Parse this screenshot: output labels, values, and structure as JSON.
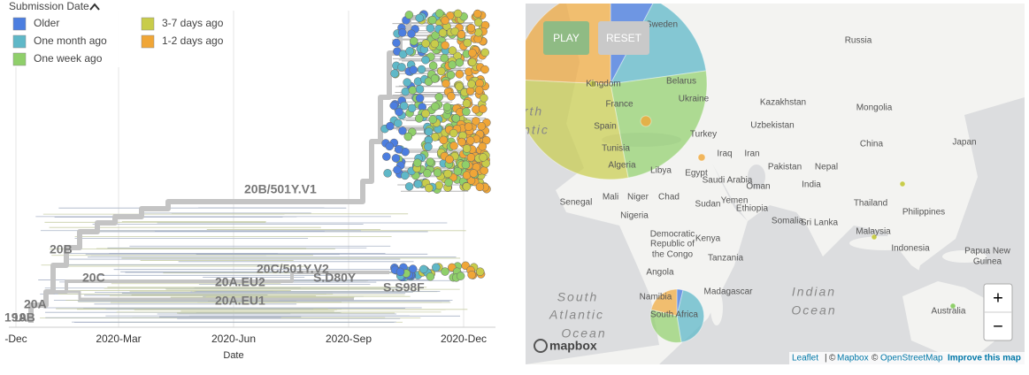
{
  "legend": {
    "title": "Submission Date",
    "items": [
      {
        "label": "Older",
        "color": "#4c7ee0"
      },
      {
        "label": "One month ago",
        "color": "#5fb8c8"
      },
      {
        "label": "One week ago",
        "color": "#8fcf6a"
      },
      {
        "label": "3-7 days ago",
        "color": "#c8cc4a"
      },
      {
        "label": "1-2 days ago",
        "color": "#f0a637"
      }
    ]
  },
  "tree": {
    "clades": [
      "20B/501Y.V1",
      "20B",
      "20C",
      "20A",
      "19A",
      "19B",
      "20C/501Y.V2",
      "20A.EU2",
      "S.D80Y",
      "20A.EU1",
      "S.S98F"
    ],
    "x_axis": {
      "label": "Date",
      "ticks": [
        "-Dec",
        "2020-Mar",
        "2020-Jun",
        "2020-Sep",
        "2020-Dec"
      ]
    }
  },
  "map": {
    "buttons": [
      "PLAY",
      "RESET"
    ],
    "labels": [
      "Russia",
      "Sweden",
      "Kingdom",
      "France",
      "Spain",
      "Belarus",
      "Ukraine",
      "Kazakhstan",
      "Mongolia",
      "Uzbekistan",
      "Turkey",
      "Iraq",
      "Iran",
      "Pakistan",
      "Nepal",
      "China",
      "Japan",
      "India",
      "Saudi Arabia",
      "Oman",
      "Egypt",
      "Libya",
      "Algeria",
      "Tunisia",
      "Mali",
      "Niger",
      "Chad",
      "Sudan",
      "Senegal",
      "Nigeria",
      "Ethiopia",
      "Yemen",
      "Somalia",
      "Kenya",
      "Democratic",
      "Republic of",
      "the Congo",
      "Angola",
      "Namibia",
      "South Africa",
      "Madagascar",
      "Sri Lanka",
      "Thailand",
      "Philippines",
      "Malaysia",
      "Indonesia",
      "Papua New",
      "Guinea",
      "Australia",
      "Tanzania"
    ],
    "oceans": [
      "Indian",
      "Ocean",
      "South",
      "Atlantic",
      "Ocean",
      "rth",
      "ntic"
    ],
    "zoom": [
      "+",
      "−"
    ],
    "attribution": {
      "leaflet": "Leaflet",
      "sep": "|",
      "copy1": "©",
      "mapbox": "Mapbox",
      "copy2": "©",
      "osm": "OpenStreetMap",
      "improve": "Improve this map"
    },
    "logo": "mapbox"
  }
}
